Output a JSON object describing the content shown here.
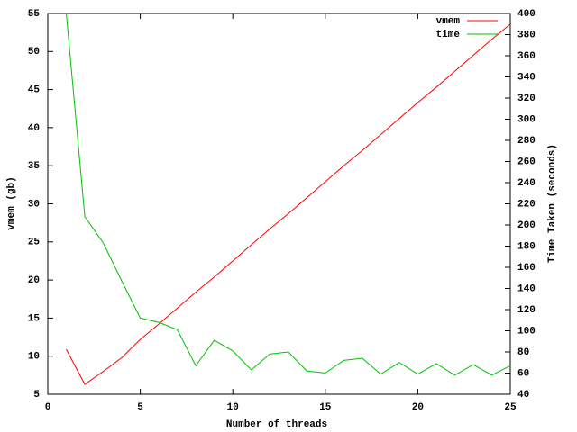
{
  "chart_data": {
    "type": "line",
    "x_label": "Number of threads",
    "y_label": "vmem (gb)",
    "y2_label": "Time Taken (seconds)",
    "x": [
      1,
      2,
      3,
      4,
      5,
      6,
      7,
      8,
      9,
      10,
      11,
      12,
      13,
      14,
      15,
      16,
      17,
      18,
      19,
      20,
      21,
      22,
      23,
      24,
      25
    ],
    "series": [
      {
        "name": "vmem",
        "color": "#ff0000",
        "axis": "y",
        "values": [
          10.9,
          6.3,
          8.0,
          9.8,
          12.2,
          14.2,
          16.3,
          18.4,
          20.4,
          22.5,
          24.6,
          26.7,
          28.7,
          30.8,
          32.9,
          35.0,
          37.0,
          39.1,
          41.2,
          43.3,
          45.3,
          47.4,
          49.5,
          51.6,
          53.6
        ]
      },
      {
        "name": "time",
        "color": "#00c000",
        "axis": "y2",
        "values": [
          400,
          208,
          183,
          147,
          112,
          108,
          101,
          67,
          91,
          81,
          63,
          78,
          80,
          62,
          60,
          72,
          74,
          59,
          70,
          59,
          69,
          58,
          68,
          58,
          67
        ]
      }
    ],
    "xlim": [
      0,
      25
    ],
    "xticks": [
      0,
      5,
      10,
      15,
      20,
      25
    ],
    "ylim": [
      5,
      55
    ],
    "yticks": [
      5,
      10,
      15,
      20,
      25,
      30,
      35,
      40,
      45,
      50,
      55
    ],
    "y2lim": [
      40,
      400
    ],
    "y2ticks": [
      40,
      60,
      80,
      100,
      120,
      140,
      160,
      180,
      200,
      220,
      240,
      260,
      280,
      300,
      320,
      340,
      360,
      380,
      400
    ],
    "legend": "top-right",
    "grid": false
  }
}
